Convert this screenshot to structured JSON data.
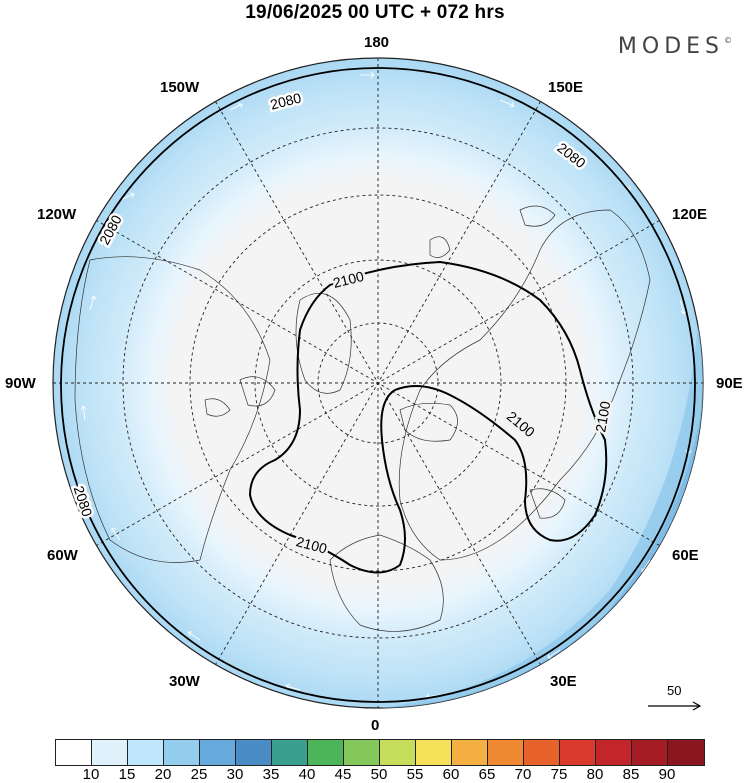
{
  "header": {
    "title": "19/06/2025  00 UTC  + 072 hrs",
    "brand": "MODES",
    "brand_mark": "©"
  },
  "map": {
    "projection": "north-polar-stereographic",
    "lon_labels": {
      "top": "180",
      "bottom": "0",
      "left": "90W",
      "right": "90E",
      "upper_left_1": "150W",
      "upper_left_2": "120W",
      "upper_right_1": "150E",
      "upper_right_2": "120E",
      "lower_left_1": "60W",
      "lower_left_2": "30W",
      "lower_right_1": "60E",
      "lower_right_2": "30E"
    },
    "contours": [
      {
        "label": "2080",
        "note": "outer ring contour"
      },
      {
        "label": "2100",
        "note": "inner closed contour"
      }
    ],
    "contour_labels": [
      "2080",
      "2080",
      "2080",
      "2080",
      "2100",
      "2100",
      "2100",
      "2100"
    ],
    "reference_vector": "50"
  },
  "colorbar": {
    "colors": [
      "#ffffff",
      "#dff2fc",
      "#bfe6fa",
      "#94cdee",
      "#66a9dd",
      "#4a8cc6",
      "#3a9f8f",
      "#4cb55a",
      "#84c75b",
      "#c6dc5b",
      "#f5e05a",
      "#f5b044",
      "#ef8a33",
      "#e8632b",
      "#d93a2c",
      "#c2262a",
      "#a61c24",
      "#8a1720"
    ],
    "ticks": [
      "10",
      "15",
      "20",
      "25",
      "30",
      "35",
      "40",
      "45",
      "50",
      "55",
      "60",
      "65",
      "70",
      "75",
      "80",
      "85",
      "90"
    ]
  }
}
